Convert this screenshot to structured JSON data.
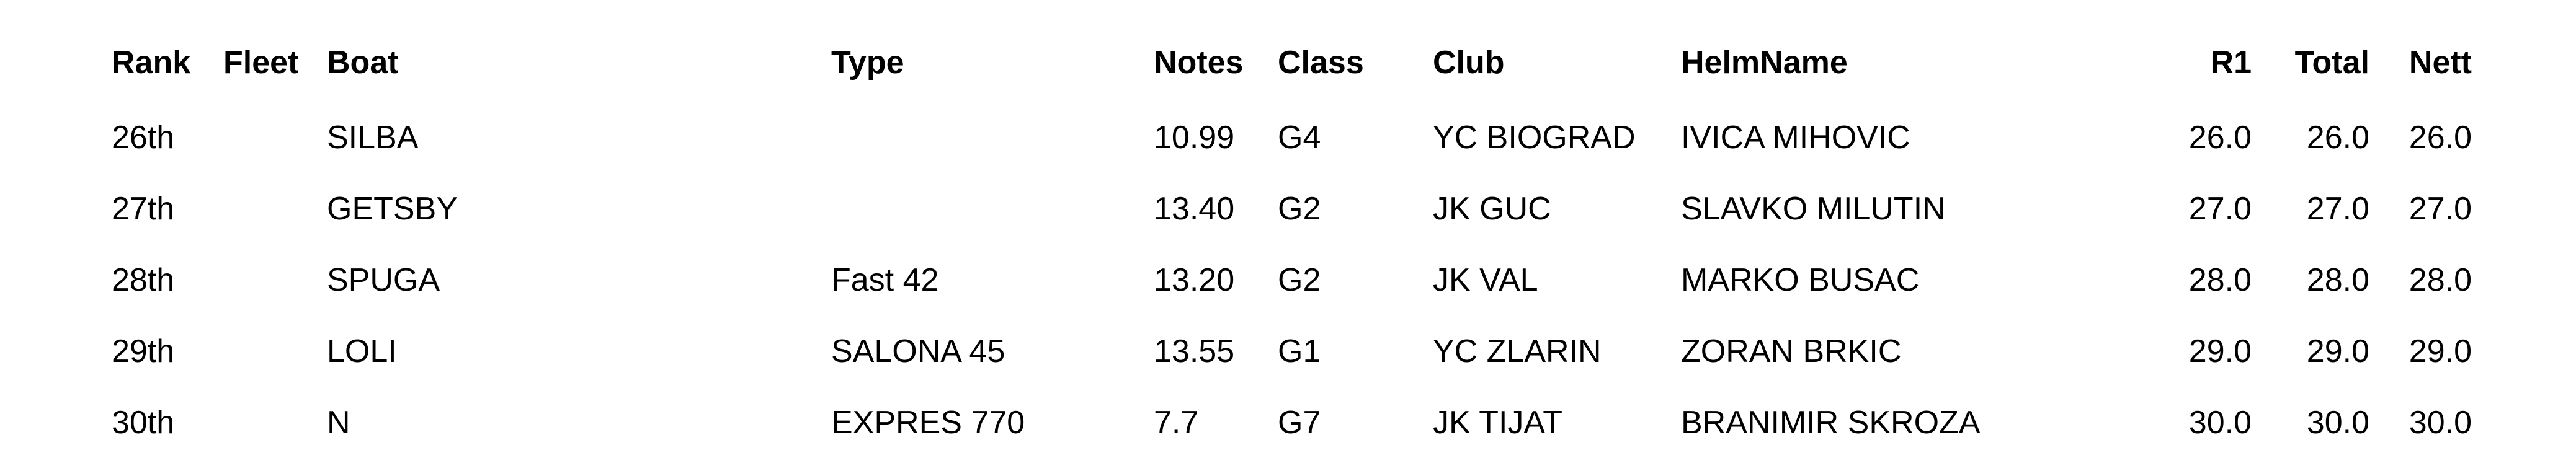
{
  "page": {
    "background_color": "#ffffff",
    "text_color": "#000000"
  },
  "table": {
    "columns": [
      {
        "key": "rank",
        "label": "Rank",
        "align": "left"
      },
      {
        "key": "fleet",
        "label": "Fleet",
        "align": "left"
      },
      {
        "key": "boat",
        "label": "Boat",
        "align": "left"
      },
      {
        "key": "type",
        "label": "Type",
        "align": "left"
      },
      {
        "key": "notes",
        "label": "Notes",
        "align": "left"
      },
      {
        "key": "class",
        "label": "Class",
        "align": "left"
      },
      {
        "key": "club",
        "label": "Club",
        "align": "left"
      },
      {
        "key": "helmname",
        "label": "HelmName",
        "align": "left"
      },
      {
        "key": "r1",
        "label": "R1",
        "align": "right"
      },
      {
        "key": "total",
        "label": "Total",
        "align": "right"
      },
      {
        "key": "nett",
        "label": "Nett",
        "align": "right"
      }
    ],
    "rows": [
      {
        "rank": "26th",
        "fleet": "",
        "boat": "SILBA",
        "type": "",
        "notes": "10.99",
        "class": "G4",
        "club": "YC BIOGRAD",
        "helmname": "IVICA MIHOVIC",
        "r1": "26.0",
        "total": "26.0",
        "nett": "26.0"
      },
      {
        "rank": "27th",
        "fleet": "",
        "boat": "GETSBY",
        "type": "",
        "notes": "13.40",
        "class": "G2",
        "club": "JK GUC",
        "helmname": "SLAVKO MILUTIN",
        "r1": "27.0",
        "total": "27.0",
        "nett": "27.0"
      },
      {
        "rank": "28th",
        "fleet": "",
        "boat": "SPUGA",
        "type": "Fast 42",
        "notes": "13.20",
        "class": "G2",
        "club": "JK VAL",
        "helmname": "MARKO BUSAC",
        "r1": "28.0",
        "total": "28.0",
        "nett": "28.0"
      },
      {
        "rank": "29th",
        "fleet": "",
        "boat": "LOLI",
        "type": "SALONA 45",
        "notes": "13.55",
        "class": "G1",
        "club": "YC ZLARIN",
        "helmname": "ZORAN BRKIC",
        "r1": "29.0",
        "total": "29.0",
        "nett": "29.0"
      },
      {
        "rank": "30th",
        "fleet": "",
        "boat": "N",
        "type": "EXPRES 770",
        "notes": "7.7",
        "class": "G7",
        "club": "JK TIJAT",
        "helmname": "BRANIMIR SKROZA",
        "r1": "30.0",
        "total": "30.0",
        "nett": "30.0"
      }
    ]
  }
}
